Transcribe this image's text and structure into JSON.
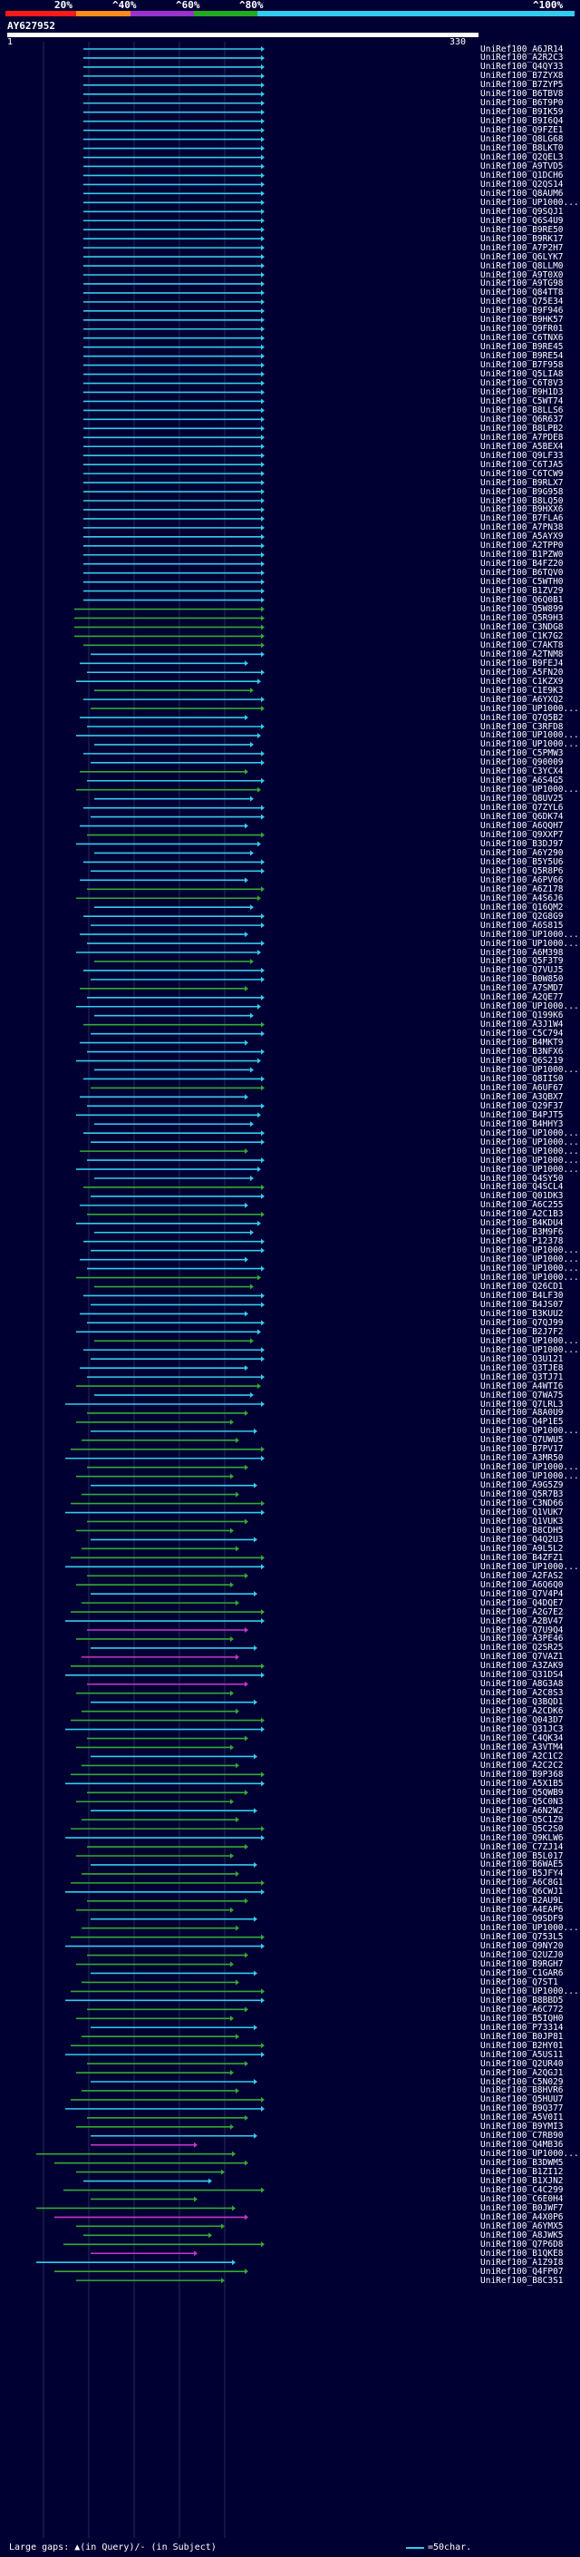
{
  "colors": {
    "background": "#000033",
    "band_0_20": "#ff1a1a",
    "band_20_40": "#ff8c1a",
    "band_40_60": "#9933cc",
    "band_60_80": "#22aa22",
    "band_80_100": "#33ccee",
    "gridline": "#2a2a55",
    "magenta": "#cc33cc",
    "green": "#33aa33",
    "cyan": "#33ccee"
  },
  "legend": {
    "labels": [
      "20%",
      "^40%",
      "^60%",
      "^80%",
      "^100%"
    ]
  },
  "query": {
    "name": "AY627952",
    "start": "1",
    "end": "330"
  },
  "hit_labels": [
    "UniRef100_A6JR14",
    "UniRef100_A2R2C3",
    "UniRef100_Q4QY33",
    "UniRef100_B7ZYX8",
    "UniRef100_B7ZYP5",
    "UniRef100_B6TBV8",
    "UniRef100_B6T9P0",
    "UniRef100_B9IK59",
    "UniRef100_B9I6Q4",
    "UniRef100_Q9FZE1",
    "UniRef100_Q8LG68",
    "UniRef100_B8LKT0",
    "UniRef100_Q2QEL3",
    "UniRef100_A9TVD5",
    "UniRef100_Q1DCH6",
    "UniRef100_Q2QS14",
    "UniRef100_Q8AUM6",
    "UniRef100_UP1000...",
    "UniRef100_Q9SQJ1",
    "UniRef100_Q6S4U9",
    "UniRef100_B9RE50",
    "UniRef100_B9RK17",
    "UniRef100_A7P2H7",
    "UniRef100_Q6LYK7",
    "UniRef100_Q8LLM0",
    "UniRef100_A9T0X0",
    "UniRef100_A9TG98",
    "UniRef100_Q84TT8",
    "UniRef100_Q75E34",
    "UniRef100_B9F946",
    "UniRef100_B9HK57",
    "UniRef100_Q9FR01",
    "UniRef100_C6TNX6",
    "UniRef100_B9RE45",
    "UniRef100_B9RE54",
    "UniRef100_B7F958",
    "UniRef100_Q5LIA8",
    "UniRef100_C6T8V3",
    "UniRef100_B9H1D3",
    "UniRef100_C5WT74",
    "UniRef100_B8LLS6",
    "UniRef100_Q6R637",
    "UniRef100_B8LPB2",
    "UniRef100_A7PDE8",
    "UniRef100_A5BEX4",
    "UniRef100_Q9LF33",
    "UniRef100_C6TJA5",
    "UniRef100_C6TCW9",
    "UniRef100_B9RLX7",
    "UniRef100_B9G958",
    "UniRef100_B8LQ50",
    "UniRef100_B9HXX6",
    "UniRef100_B7FLA6",
    "UniRef100_A7PN38",
    "UniRef100_A5AYX9",
    "UniRef100_A2TPP0",
    "UniRef100_B1PZW0",
    "UniRef100_B4FZ20",
    "UniRef100_B6TQV0",
    "UniRef100_C5WTH0",
    "UniRef100_B1ZV29",
    "UniRef100_Q6Q0B1",
    "UniRef100_Q5W899",
    "UniRef100_Q5R9H3",
    "UniRef100_C3NDG8",
    "UniRef100_C1K7G2",
    "UniRef100_C7AKT8",
    "UniRef100_A2TNM8",
    "UniRef100_B9FEJ4",
    "UniRef100_A5FN20",
    "UniRef100_C1KZX9",
    "UniRef100_C1E9K3",
    "UniRef100_A6YXQ2",
    "UniRef100_UP1000...",
    "UniRef100_Q7Q5B2",
    "UniRef100_C3RFD8",
    "UniRef100_UP1000...",
    "UniRef100_UP1000...",
    "UniRef100_C5PMW3",
    "UniRef100_Q90009",
    "UniRef100_C3YCX4",
    "UniRef100_A6S4G5",
    "UniRef100_UP1000...",
    "UniRef100_Q8UV25",
    "UniRef100_Q7ZYL6",
    "UniRef100_Q6DK74",
    "UniRef100_A6QQH7",
    "UniRef100_Q9XXP7",
    "UniRef100_B3DJ97",
    "UniRef100_A6Y290",
    "UniRef100_B5Y5U6",
    "UniRef100_Q5R8P6",
    "UniRef100_A6PV66",
    "UniRef100_A6Z178",
    "UniRef100_A4S6J6",
    "UniRef100_Q16QM2",
    "UniRef100_Q2G8G9",
    "UniRef100_A6S815",
    "UniRef100_UP1000...",
    "UniRef100_UP1000...",
    "UniRef100_A6M398",
    "UniRef100_Q5F3T9",
    "UniRef100_Q7VUJ5",
    "UniRef100_B0W850",
    "UniRef100_A7SMD7",
    "UniRef100_A2QE77",
    "UniRef100_UP1000...",
    "UniRef100_Q199K6",
    "UniRef100_A3J1W4",
    "UniRef100_C5C794",
    "UniRef100_B4MKT9",
    "UniRef100_B3NFX6",
    "UniRef100_Q6S219",
    "UniRef100_UP1000...",
    "UniRef100_Q8IIS0",
    "UniRef100_A6UF67",
    "UniRef100_A3QBX7",
    "UniRef100_Q29F37",
    "UniRef100_B4PJT5",
    "UniRef100_B4HHY3",
    "UniRef100_UP1000...",
    "UniRef100_UP1000...",
    "UniRef100_UP1000...",
    "UniRef100_UP1000...",
    "UniRef100_UP1000...",
    "UniRef100_Q4SY50",
    "UniRef100_Q4SCL4",
    "UniRef100_Q01DK3",
    "UniRef100_A6C255",
    "UniRef100_A2C1B3",
    "UniRef100_B4KDU4",
    "UniRef100_B3M9F6",
    "UniRef100_P12378",
    "UniRef100_UP1000...",
    "UniRef100_UP1000...",
    "UniRef100_UP1000...",
    "UniRef100_UP1000...",
    "UniRef100_Q26CD1",
    "UniRef100_B4LF30",
    "UniRef100_B4JS07",
    "UniRef100_B3KUU2",
    "UniRef100_Q7QJ99",
    "UniRef100_B2J7F2",
    "UniRef100_UP1000...",
    "UniRef100_UP1000...",
    "UniRef100_Q3U121",
    "UniRef100_Q3TJE8",
    "UniRef100_Q3TJ71",
    "UniRef100_A4WTI6",
    "UniRef100_Q7WA75",
    "UniRef100_Q7LRL3",
    "UniRef100_A8A0U9",
    "UniRef100_Q4P1E5",
    "UniRef100_UP1000...",
    "UniRef100_Q7UWU5",
    "UniRef100_B7PV17",
    "UniRef100_A3MR50",
    "UniRef100_UP1000...",
    "UniRef100_UP1000...",
    "UniRef100_A9G5Z9",
    "UniRef100_Q5R7B3",
    "UniRef100_C3ND66",
    "UniRef100_Q1VUK7",
    "UniRef100_Q1VUK3",
    "UniRef100_B8CDH5",
    "UniRef100_Q4Q2U3",
    "UniRef100_A9L5L2",
    "UniRef100_B4ZFZ1",
    "UniRef100_UP1000...",
    "UniRef100_A2FAS2",
    "UniRef100_A6Q6Q0",
    "UniRef100_Q7V4P4",
    "UniRef100_Q4DQE7",
    "UniRef100_A2G7E2",
    "UniRef100_A2BV47",
    "UniRef100_Q7U9Q4",
    "UniRef100_A3PE46",
    "UniRef100_Q2SR25",
    "UniRef100_Q7VAZ1",
    "UniRef100_A3ZAK9",
    "UniRef100_Q31DS4",
    "UniRef100_A8G3A8",
    "UniRef100_A2C8S3",
    "UniRef100_Q3BQD1",
    "UniRef100_A2CDK6",
    "UniRef100_Q043D7",
    "UniRef100_Q31JC3",
    "UniRef100_C4QK34",
    "UniRef100_A3VTM4",
    "UniRef100_A2C1C2",
    "UniRef100_A2C2C2",
    "UniRef100_B9P368",
    "UniRef100_A5X1B5",
    "UniRef100_Q5QWB9",
    "UniRef100_Q5C0N3",
    "UniRef100_A6N2W2",
    "UniRef100_Q5C1Z9",
    "UniRef100_Q5C2S0",
    "UniRef100_Q9KLW6",
    "UniRef100_C7ZJ14",
    "UniRef100_B5L017",
    "UniRef100_B6WAE5",
    "UniRef100_B5JFY4",
    "UniRef100_A6C8G1",
    "UniRef100_Q6CWJ1",
    "UniRef100_B2AU9L",
    "UniRef100_A4EAP6",
    "UniRef100_Q9SDF9",
    "UniRef100_UP1000...",
    "UniRef100_Q753L5",
    "UniRef100_Q9NY20",
    "UniRef100_Q2UZJ0",
    "UniRef100_B9RGH7",
    "UniRef100_C1GAR6",
    "UniRef100_Q7ST1",
    "UniRef100_UP1000...",
    "UniRef100_B8BBD5",
    "UniRef100_A6C772",
    "UniRef100_B5IQH0",
    "UniRef100_P73314",
    "UniRef100_B0JP81",
    "UniRef100_B2HY01",
    "UniRef100_A5US11",
    "UniRef100_Q2UR40",
    "UniRef100_A2QGJ1",
    "UniRef100_C5N029",
    "UniRef100_B8HVR6",
    "UniRef100_Q5HUU7",
    "UniRef100_B9Q377",
    "UniRef100_A5V0I1",
    "UniRef100_B9YMI3",
    "UniRef100_C7RB90",
    "UniRef100_Q4MB36",
    "UniRef100_UP1000...",
    "UniRef100_B3DWM5",
    "UniRef100_B1ZI12",
    "UniRef100_B1XJN2",
    "UniRef100_C4C299",
    "UniRef100_C6E0H4",
    "UniRef100_B0JWF7",
    "UniRef100_A4X0P6",
    "UniRef100_A6YMX5",
    "UniRef100_A8JWK5",
    "UniRef100_Q7P6D8",
    "UniRef100_B1QKE8",
    "UniRef100_A1Z9I8",
    "UniRef100_Q4FP07",
    "UniRef100_B8C3S1"
  ],
  "footer": {
    "text": "Large gaps: ▲(in Query)/- (in Subject)",
    "legend_text": "=50char."
  }
}
